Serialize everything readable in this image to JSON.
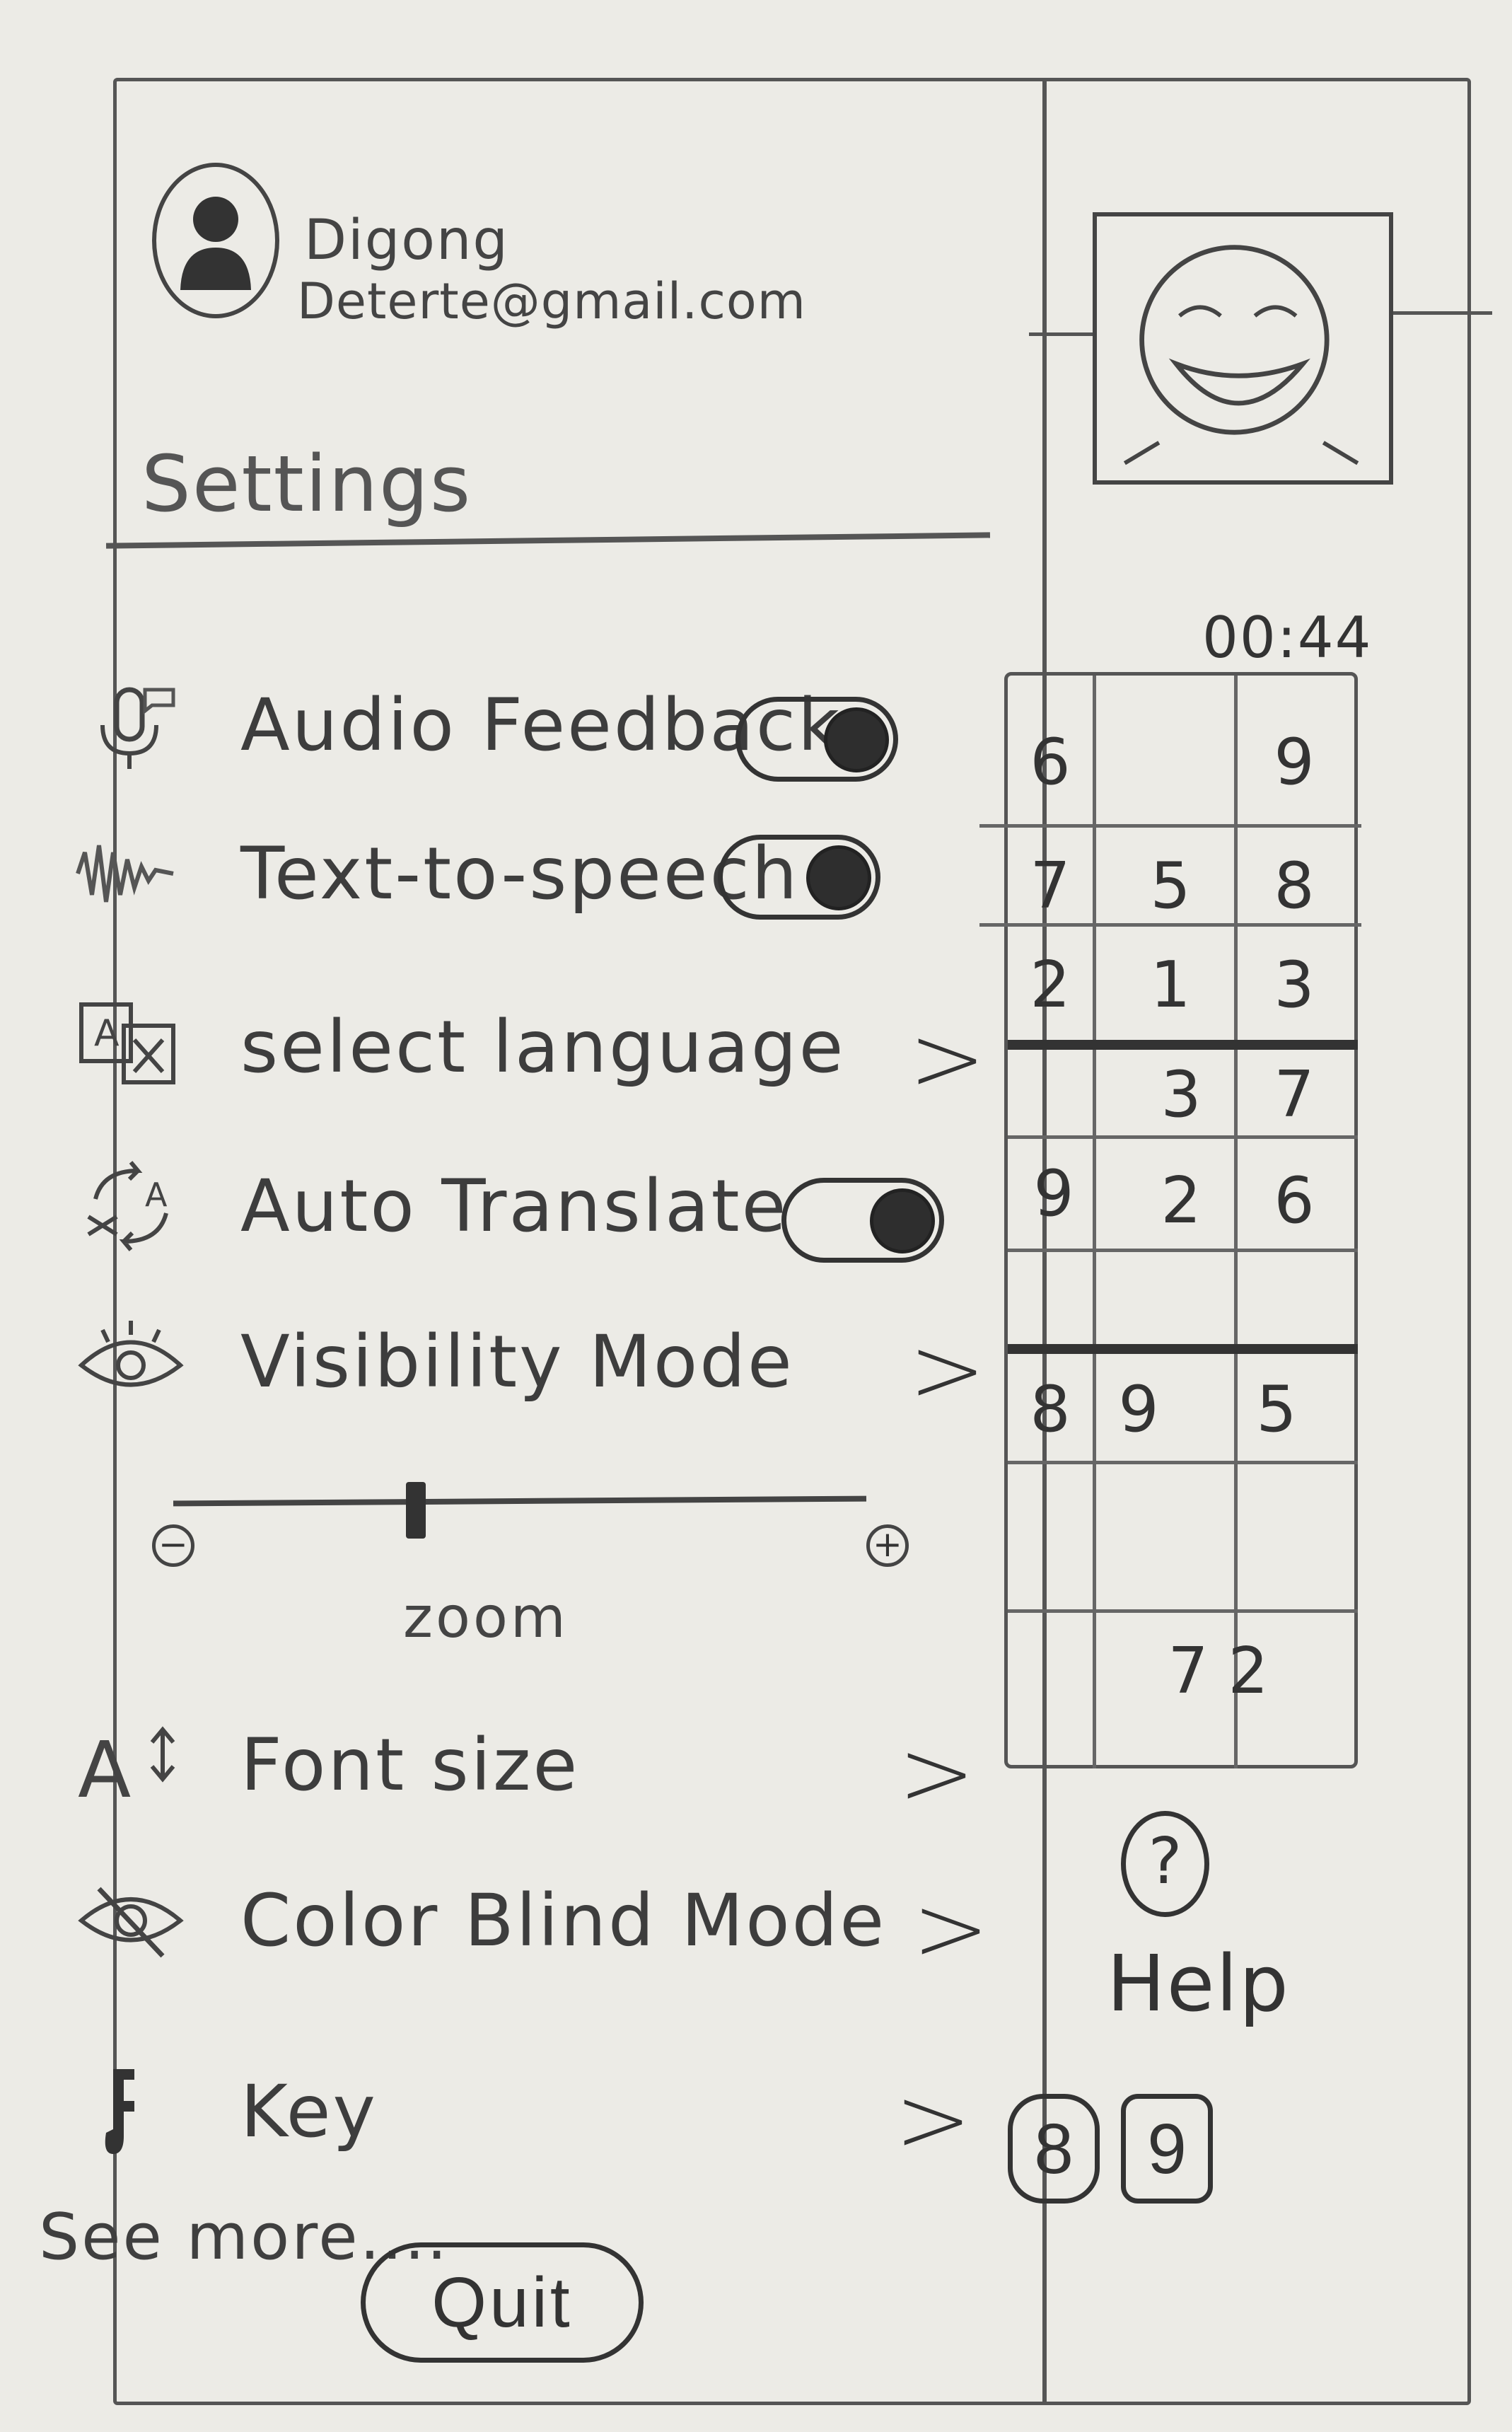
{
  "user": {
    "name": "Digong",
    "email": "Deterte@gmail.com"
  },
  "settings": {
    "title": "Settings",
    "items": [
      {
        "label": "Audio Feedback",
        "icon": "microphone-icon",
        "control": "toggle",
        "on": true
      },
      {
        "label": "Text-to-speech",
        "icon": "sound-wave-icon",
        "control": "toggle",
        "on": true
      },
      {
        "label": "select language",
        "icon": "translate-icon",
        "control": "chevron",
        "chevron": ">"
      },
      {
        "label": "Auto Translate",
        "icon": "auto-translate-icon",
        "control": "toggle",
        "on": true
      },
      {
        "label": "Visibility Mode",
        "icon": "eye-icon",
        "control": "chevron",
        "chevron": ">"
      },
      {
        "label": "Font size",
        "icon": "font-size-icon",
        "control": "chevron",
        "chevron": ">"
      },
      {
        "label": "Color Blind Mode",
        "icon": "eye-slash-icon",
        "control": "chevron",
        "chevron": ">"
      },
      {
        "label": "Key",
        "icon": "key-icon",
        "control": "chevron",
        "chevron": ">"
      }
    ],
    "zoom": {
      "label": "zoom",
      "minus": "−",
      "plus": "+",
      "level": 0.35
    },
    "see_more": "See more....",
    "quit": "Quit"
  },
  "game": {
    "timer": "00:44",
    "cells": [
      [
        "6",
        "",
        "9"
      ],
      [
        "7",
        "5",
        "8"
      ],
      [
        "2",
        "1",
        "3"
      ],
      [
        "",
        "3",
        "7"
      ],
      [
        "9",
        "2",
        "6"
      ],
      [
        "",
        "",
        ""
      ],
      [
        "8",
        "9",
        "5"
      ],
      [
        "",
        "",
        ""
      ],
      [
        "",
        "7",
        "2"
      ]
    ],
    "help": {
      "icon": "?",
      "label": "Help"
    },
    "number_keys": [
      "8",
      "9"
    ]
  }
}
